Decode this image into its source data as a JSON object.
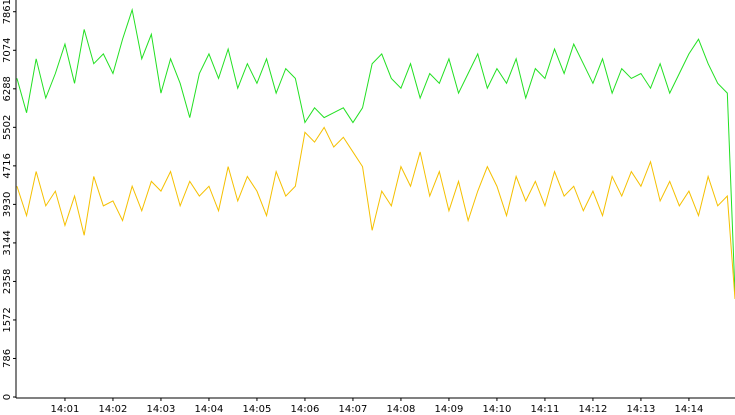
{
  "chart_data": {
    "type": "line",
    "x": [
      0,
      0.2,
      0.4,
      0.6,
      0.8,
      1,
      1.2,
      1.4,
      1.6,
      1.8,
      2,
      2.2,
      2.4,
      2.6,
      2.8,
      3,
      3.2,
      3.4,
      3.6,
      3.8,
      4,
      4.2,
      4.4,
      4.6,
      4.8,
      5,
      5.2,
      5.4,
      5.6,
      5.8,
      6,
      6.2,
      6.4,
      6.6,
      6.8,
      7,
      7.2,
      7.4,
      7.6,
      7.8,
      8,
      8.2,
      8.4,
      8.6,
      8.8,
      9,
      9.2,
      9.4,
      9.6,
      9.8,
      10,
      10.2,
      10.4,
      10.6,
      10.8,
      11,
      11.2,
      11.4,
      11.6,
      11.8,
      12,
      12.2,
      12.4,
      12.6,
      12.8,
      13,
      13.2,
      13.4,
      13.6,
      13.8,
      14,
      14.2,
      14.4,
      14.6,
      14.8,
      14.96
    ],
    "series": [
      {
        "color": "#22e022",
        "values": [
          6500,
          5800,
          6900,
          6100,
          6600,
          7200,
          6400,
          7500,
          6800,
          7000,
          6600,
          7300,
          7900,
          6900,
          7400,
          6200,
          6900,
          6400,
          5700,
          6600,
          7000,
          6500,
          7100,
          6300,
          6800,
          6400,
          6900,
          6200,
          6700,
          6500,
          5600,
          5900,
          5700,
          5800,
          5900,
          5600,
          5900,
          6800,
          7000,
          6500,
          6300,
          6800,
          6100,
          6600,
          6400,
          6900,
          6200,
          6600,
          7000,
          6300,
          6700,
          6400,
          6900,
          6100,
          6700,
          6500,
          7100,
          6600,
          7200,
          6800,
          6400,
          6900,
          6200,
          6700,
          6500,
          6600,
          6300,
          6800,
          6200,
          6600,
          7000,
          7300,
          6800,
          6400,
          6200,
          2100
        ]
      },
      {
        "color": "#f5c000",
        "values": [
          4300,
          3700,
          4600,
          3900,
          4200,
          3500,
          4100,
          3300,
          4500,
          3900,
          4000,
          3600,
          4300,
          3800,
          4400,
          4200,
          4600,
          3900,
          4400,
          4100,
          4300,
          3800,
          4700,
          4000,
          4500,
          4200,
          3700,
          4600,
          4100,
          4300,
          5400,
          5200,
          5500,
          5100,
          5300,
          5000,
          4700,
          3400,
          4200,
          3900,
          4700,
          4300,
          5000,
          4100,
          4600,
          3800,
          4400,
          3600,
          4200,
          4700,
          4300,
          3700,
          4500,
          4000,
          4400,
          3900,
          4600,
          4100,
          4300,
          3800,
          4200,
          3700,
          4500,
          4100,
          4600,
          4300,
          4800,
          4000,
          4400,
          3900,
          4200,
          3700,
          4500,
          3900,
          4100,
          2000
        ]
      }
    ],
    "xlim": [
      -0.02,
      14.96
    ],
    "xticks": [
      {
        "value": 1,
        "label": "14:01"
      },
      {
        "value": 2,
        "label": "14:02"
      },
      {
        "value": 3,
        "label": "14:03"
      },
      {
        "value": 4,
        "label": "14:04"
      },
      {
        "value": 5,
        "label": "14:05"
      },
      {
        "value": 6,
        "label": "14:06"
      },
      {
        "value": 7,
        "label": "14:07"
      },
      {
        "value": 8,
        "label": "14:08"
      },
      {
        "value": 9,
        "label": "14:09"
      },
      {
        "value": 10,
        "label": "14:10"
      },
      {
        "value": 11,
        "label": "14:11"
      },
      {
        "value": 12,
        "label": "14:12"
      },
      {
        "value": 13,
        "label": "14:13"
      },
      {
        "value": 14,
        "label": "14:14"
      }
    ],
    "ylim": [
      0,
      8100
    ],
    "yticks": [
      0,
      786,
      1572,
      2358,
      3144,
      3930,
      4716,
      5502,
      6288,
      7074,
      7861
    ]
  }
}
